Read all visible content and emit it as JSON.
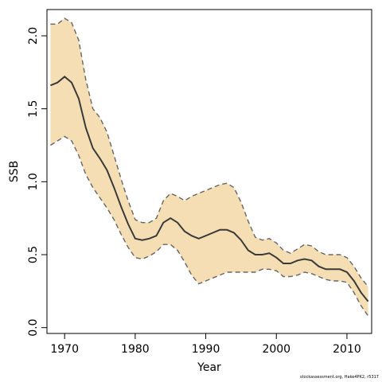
{
  "chart_data": {
    "type": "line",
    "xlabel": "Year",
    "ylabel": "SSB",
    "xlim": [
      1967.5,
      2013.5
    ],
    "ylim": [
      -0.04,
      2.18
    ],
    "xticks": [
      1970,
      1980,
      1990,
      2000,
      2010
    ],
    "yticks": [
      0.0,
      0.5,
      1.0,
      1.5,
      2.0
    ],
    "ytick_labels": [
      "0.0",
      "0.5",
      "1.0",
      "1.5",
      "2.0"
    ],
    "grid": false,
    "band_color": "#f5deb3",
    "line_color": "#3a3a3a",
    "bound_color": "#666666",
    "x": [
      1968,
      1969,
      1970,
      1971,
      1972,
      1973,
      1974,
      1975,
      1976,
      1977,
      1978,
      1979,
      1980,
      1981,
      1982,
      1983,
      1984,
      1985,
      1986,
      1987,
      1988,
      1989,
      1990,
      1991,
      1992,
      1993,
      1994,
      1995,
      1996,
      1997,
      1998,
      1999,
      2000,
      2001,
      2002,
      2003,
      2004,
      2005,
      2006,
      2007,
      2008,
      2009,
      2010,
      2011,
      2012,
      2013
    ],
    "series": [
      {
        "values": [
          1.66,
          1.68,
          1.72,
          1.68,
          1.57,
          1.37,
          1.23,
          1.16,
          1.08,
          0.96,
          0.83,
          0.71,
          0.61,
          0.6,
          0.61,
          0.63,
          0.72,
          0.75,
          0.72,
          0.66,
          0.63,
          0.61,
          0.63,
          0.65,
          0.67,
          0.67,
          0.65,
          0.6,
          0.53,
          0.5,
          0.5,
          0.51,
          0.48,
          0.44,
          0.44,
          0.46,
          0.47,
          0.46,
          0.42,
          0.4,
          0.4,
          0.4,
          0.38,
          0.32,
          0.24,
          0.18
        ]
      },
      {
        "values": [
          2.08,
          2.08,
          2.12,
          2.09,
          1.97,
          1.7,
          1.5,
          1.44,
          1.34,
          1.18,
          1.02,
          0.87,
          0.74,
          0.72,
          0.72,
          0.75,
          0.87,
          0.92,
          0.9,
          0.87,
          0.9,
          0.92,
          0.94,
          0.96,
          0.98,
          0.99,
          0.96,
          0.86,
          0.73,
          0.62,
          0.6,
          0.61,
          0.58,
          0.53,
          0.51,
          0.54,
          0.57,
          0.56,
          0.52,
          0.5,
          0.5,
          0.5,
          0.48,
          0.42,
          0.34,
          0.28
        ]
      },
      {
        "values": [
          1.25,
          1.28,
          1.31,
          1.28,
          1.18,
          1.05,
          0.96,
          0.89,
          0.82,
          0.74,
          0.64,
          0.55,
          0.48,
          0.47,
          0.49,
          0.52,
          0.57,
          0.57,
          0.53,
          0.45,
          0.36,
          0.3,
          0.32,
          0.34,
          0.36,
          0.38,
          0.38,
          0.38,
          0.38,
          0.38,
          0.4,
          0.4,
          0.39,
          0.35,
          0.35,
          0.36,
          0.38,
          0.37,
          0.35,
          0.33,
          0.32,
          0.32,
          0.31,
          0.24,
          0.15,
          0.08
        ]
      }
    ]
  },
  "footer": {
    "credit": "stockassessment.org, Hake4PK2, r5317"
  }
}
